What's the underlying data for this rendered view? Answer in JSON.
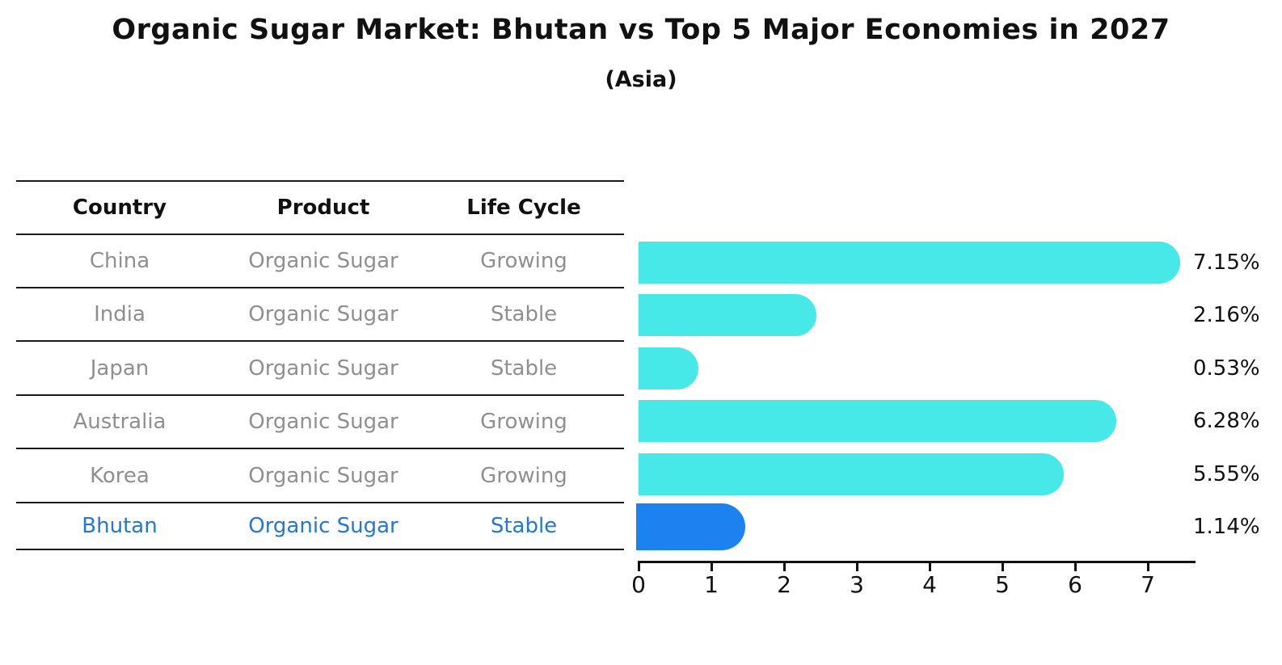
{
  "title": "Organic Sugar Market: Bhutan vs Top 5 Major Economies in 2027",
  "subtitle": "(Asia)",
  "table": {
    "headers": [
      "Country",
      "Product",
      "Life Cycle"
    ],
    "rows": [
      {
        "country": "China",
        "product": "Organic Sugar",
        "life_cycle": "Growing"
      },
      {
        "country": "India",
        "product": "Organic Sugar",
        "life_cycle": "Stable"
      },
      {
        "country": "Japan",
        "product": "Organic Sugar",
        "life_cycle": "Stable"
      },
      {
        "country": "Australia",
        "product": "Organic Sugar",
        "life_cycle": "Growing"
      },
      {
        "country": "Korea",
        "product": "Organic Sugar",
        "life_cycle": "Growing"
      },
      {
        "country": "Bhutan",
        "product": "Organic Sugar",
        "life_cycle": "Stable"
      }
    ]
  },
  "chart_data": {
    "type": "bar",
    "orientation": "horizontal",
    "categories": [
      "China",
      "India",
      "Japan",
      "Australia",
      "Korea",
      "Bhutan"
    ],
    "values": [
      7.15,
      2.16,
      0.53,
      6.28,
      5.55,
      1.14
    ],
    "value_labels": [
      "7.15%",
      "2.16%",
      "0.53%",
      "6.28%",
      "5.55%",
      "1.14%"
    ],
    "x_ticks": [
      0,
      1,
      2,
      3,
      4,
      5,
      6,
      7
    ],
    "xlim": [
      0,
      7.6
    ],
    "grid": false,
    "legend": "none",
    "highlight_category": "Bhutan",
    "colors": {
      "bar_default": "#46E8E8",
      "bar_highlight": "#1C82F0",
      "highlight_text": "#2277D8",
      "row_text": "#8f8f8f",
      "text": "#111111"
    }
  }
}
